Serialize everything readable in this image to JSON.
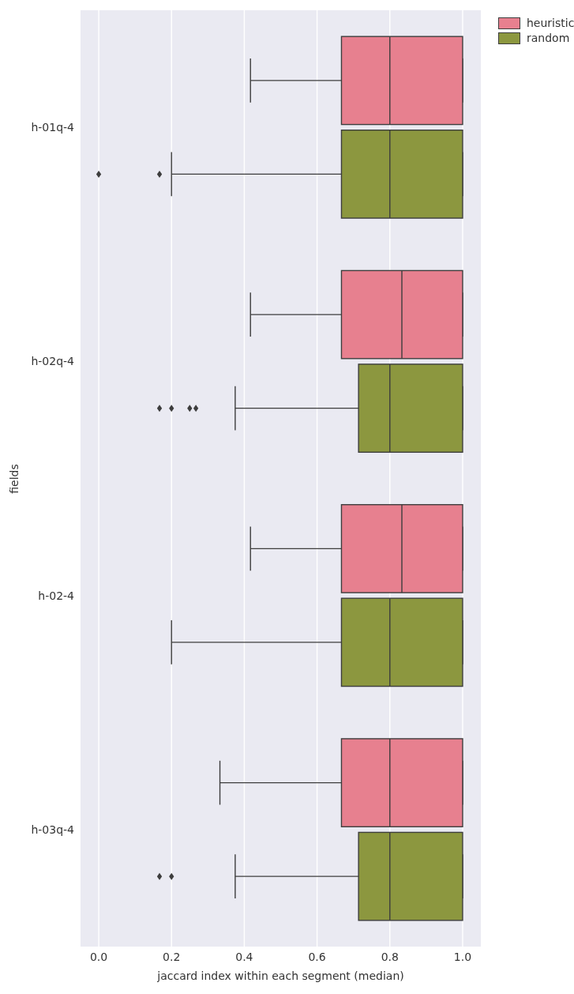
{
  "chart_data": {
    "type": "box",
    "orientation": "horizontal",
    "xlabel": "jaccard index within each segment (median)",
    "ylabel": "fields",
    "categories": [
      "h-01q-4",
      "h-02q-4",
      "h-02-4",
      "h-03q-4"
    ],
    "series": [
      {
        "name": "heuristic",
        "color": "#e7808f",
        "boxes": [
          {
            "low": 0.417,
            "q1": 0.667,
            "median": 0.8,
            "q3": 1,
            "high": 1
          },
          {
            "low": 0.417,
            "q1": 0.667,
            "median": 0.833,
            "q3": 1,
            "high": 1
          },
          {
            "low": 0.417,
            "q1": 0.667,
            "median": 0.833,
            "q3": 1,
            "high": 1
          },
          {
            "low": 0.333,
            "q1": 0.667,
            "median": 0.8,
            "q3": 1,
            "high": 1
          }
        ]
      },
      {
        "name": "random",
        "color": "#8c973f",
        "boxes": [
          {
            "low": 0.2,
            "q1": 0.667,
            "median": 0.8,
            "q3": 1,
            "high": 1,
            "outliers": [
              0,
              0.167
            ]
          },
          {
            "low": 0.375,
            "q1": 0.714,
            "median": 0.8,
            "q3": 1,
            "high": 1,
            "outliers": [
              0.167,
              0.2,
              0.25,
              0.267
            ]
          },
          {
            "low": 0.2,
            "q1": 0.667,
            "median": 0.8,
            "q3": 1,
            "high": 1
          },
          {
            "low": 0.375,
            "q1": 0.714,
            "median": 0.8,
            "q3": 1,
            "high": 1,
            "outliers": [
              0.167,
              0.2
            ]
          }
        ]
      }
    ],
    "xlim": [
      -0.05,
      1.05
    ],
    "xticks": [
      {
        "value": 0,
        "label": "0.0"
      },
      {
        "value": 0.2,
        "label": "0.2"
      },
      {
        "value": 0.4,
        "label": "0.4"
      },
      {
        "value": 0.6,
        "label": "0.6"
      },
      {
        "value": 0.8,
        "label": "0.8"
      },
      {
        "value": 1,
        "label": "1.0"
      }
    ],
    "grid": "x",
    "legend": "top right",
    "marker": "diamond"
  }
}
